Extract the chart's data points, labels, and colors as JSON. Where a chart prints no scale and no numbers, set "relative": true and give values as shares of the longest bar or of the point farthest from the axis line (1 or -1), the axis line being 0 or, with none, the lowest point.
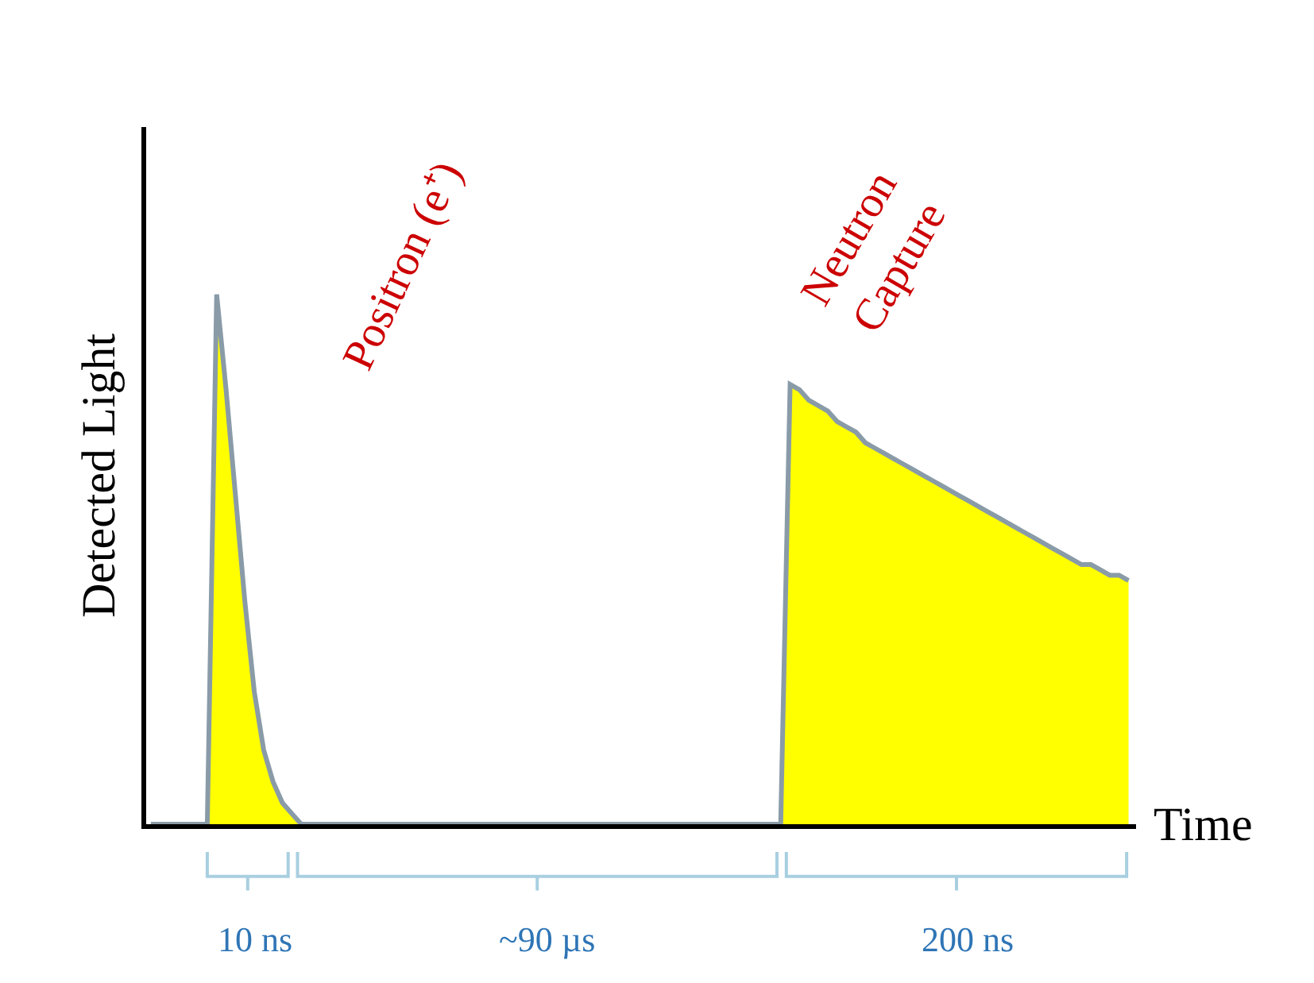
{
  "chart_data": {
    "type": "area",
    "relative": true,
    "xlabel": "Time",
    "ylabel": "Detected Light",
    "categories": [
      null,
      null,
      null,
      null,
      null,
      null,
      null,
      null,
      null,
      null,
      null,
      null,
      null,
      null,
      null,
      null,
      null,
      null,
      null,
      null,
      null,
      null,
      null,
      null,
      null,
      null,
      null,
      null,
      null,
      null,
      null,
      null,
      null,
      null,
      null,
      null,
      null,
      null,
      null,
      null,
      null,
      null,
      null,
      null,
      null,
      null,
      null,
      null,
      null,
      null,
      null,
      null,
      null,
      null,
      null,
      null,
      null,
      null,
      null,
      null,
      null,
      null,
      null,
      null,
      null,
      null,
      null,
      null,
      null,
      null,
      null,
      null,
      null,
      null,
      null,
      null,
      null,
      null,
      null,
      null,
      null,
      null,
      null,
      null,
      null,
      null,
      null,
      null,
      null,
      null,
      null,
      null,
      null,
      null,
      null,
      null,
      null,
      null,
      null,
      null,
      null,
      null,
      null,
      null,
      null
    ],
    "series": [
      {
        "color": "#ffff00",
        "values": [
          0,
          0,
          0,
          0,
          0,
          0,
          0,
          1.0,
          0.82,
          0.62,
          0.42,
          0.25,
          0.14,
          0.08,
          0.04,
          0.02,
          0,
          0,
          0,
          0,
          0,
          0,
          0,
          0,
          0,
          0,
          0,
          0,
          0,
          0,
          0,
          0,
          0,
          0,
          0,
          0,
          0,
          0,
          0,
          0,
          0,
          0,
          0,
          0,
          0,
          0,
          0,
          0,
          0,
          0,
          0,
          0,
          0,
          0,
          0,
          0,
          0,
          0,
          0,
          0,
          0,
          0,
          0,
          0,
          0,
          0,
          0,
          0,
          0.83,
          0.82,
          0.8,
          0.79,
          0.78,
          0.76,
          0.75,
          0.74,
          0.72,
          0.71,
          0.7,
          0.69,
          0.68,
          0.67,
          0.66,
          0.65,
          0.64,
          0.63,
          0.62,
          0.61,
          0.6,
          0.59,
          0.58,
          0.57,
          0.56,
          0.55,
          0.54,
          0.53,
          0.52,
          0.51,
          0.5,
          0.49,
          0.49,
          0.48,
          0.47,
          0.47,
          0.46
        ]
      }
    ],
    "annotations": [
      "Positron (e⁺)",
      "Neutron\nCapture",
      "10 ns",
      "~90 µs",
      "200 ns"
    ],
    "line_style": "solid"
  }
}
